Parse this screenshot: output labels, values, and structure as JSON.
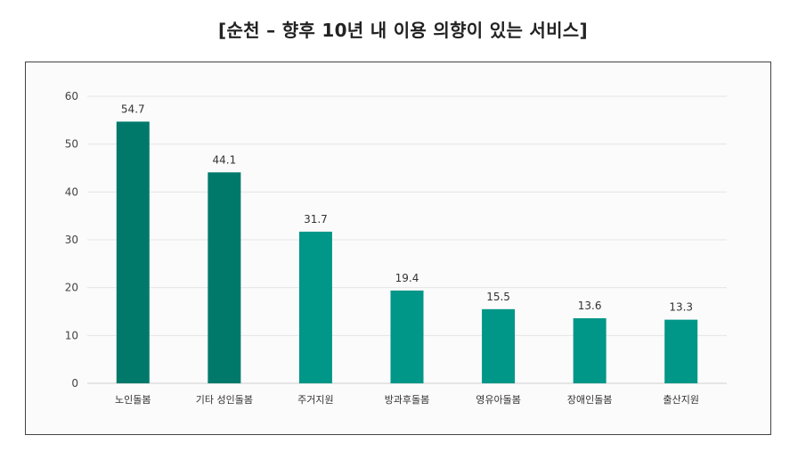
{
  "title": "[순천 – 향후 10년 내 이용 의향이 있는 서비스]",
  "chart_data": {
    "type": "bar",
    "title": "[순천 – 향후 10년 내 이용 의향이 있는 서비스]",
    "categories": [
      "노인돌봄",
      "기타 성인돌봄",
      "주거지원",
      "방과후돌봄",
      "영유아돌봄",
      "장애인돌봄",
      "출산지원"
    ],
    "values": [
      54.7,
      44.1,
      31.7,
      19.4,
      15.5,
      13.6,
      13.3
    ],
    "value_labels": [
      "54.7",
      "44.1",
      "31.7",
      "19.4",
      "15.5",
      "13.6",
      "13.3"
    ],
    "yticks": [
      "0",
      "10",
      "20",
      "30",
      "40",
      "50",
      "60"
    ],
    "ylim": [
      0,
      60
    ],
    "grid": true,
    "colors": [
      "#00796b",
      "#00796b",
      "#009688",
      "#009688",
      "#009688",
      "#009688",
      "#009688"
    ]
  }
}
